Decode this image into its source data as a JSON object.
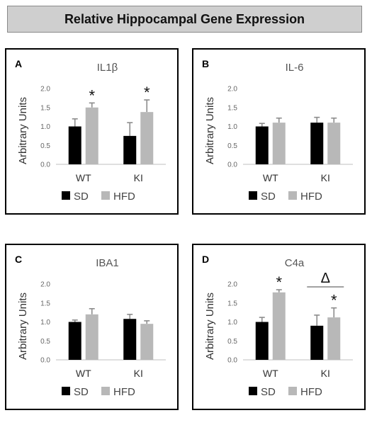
{
  "title": "Relative Hippocampal Gene Expression",
  "colors": {
    "SD": "#000000",
    "HFD": "#b8b8b8",
    "error": "#8c8c8c",
    "axis": "#bfbfbf"
  },
  "chart_data": [
    {
      "type": "bar",
      "panel": "A",
      "title": "IL1β",
      "ylabel": "Arbitrary Units",
      "ylim": [
        0,
        2.0
      ],
      "yticks": [
        "0.0",
        "0.5",
        "1.0",
        "1.5",
        "2.0"
      ],
      "categories": [
        "WT",
        "KI"
      ],
      "series": [
        {
          "name": "SD",
          "values": [
            1.0,
            0.75
          ],
          "errors": [
            0.2,
            0.35
          ]
        },
        {
          "name": "HFD",
          "values": [
            1.5,
            1.38
          ],
          "errors": [
            0.12,
            0.32
          ]
        }
      ],
      "annotations": [
        {
          "text": "*",
          "category": "WT",
          "series": "HFD"
        },
        {
          "text": "*",
          "category": "KI",
          "series": "HFD"
        }
      ],
      "legend": [
        "SD",
        "HFD"
      ]
    },
    {
      "type": "bar",
      "panel": "B",
      "title": "IL-6",
      "ylabel": "Arbitrary Units",
      "ylim": [
        0,
        2.0
      ],
      "yticks": [
        "0.0",
        "0.5",
        "1.0",
        "1.5",
        "2.0"
      ],
      "categories": [
        "WT",
        "KI"
      ],
      "series": [
        {
          "name": "SD",
          "values": [
            1.0,
            1.1
          ],
          "errors": [
            0.08,
            0.14
          ]
        },
        {
          "name": "HFD",
          "values": [
            1.1,
            1.1
          ],
          "errors": [
            0.12,
            0.12
          ]
        }
      ],
      "annotations": [],
      "legend": [
        "SD",
        "HFD"
      ]
    },
    {
      "type": "bar",
      "panel": "C",
      "title": "IBA1",
      "ylabel": "Arbitrary Units",
      "ylim": [
        0,
        2.0
      ],
      "yticks": [
        "0.0",
        "0.5",
        "1.0",
        "1.5",
        "2.0"
      ],
      "categories": [
        "WT",
        "KI"
      ],
      "series": [
        {
          "name": "SD",
          "values": [
            1.0,
            1.08
          ],
          "errors": [
            0.05,
            0.12
          ]
        },
        {
          "name": "HFD",
          "values": [
            1.2,
            0.95
          ],
          "errors": [
            0.15,
            0.08
          ]
        }
      ],
      "annotations": [],
      "legend": [
        "SD",
        "HFD"
      ]
    },
    {
      "type": "bar",
      "panel": "D",
      "title": "C4a",
      "ylabel": "Arbitrary Units",
      "ylim": [
        0,
        2.0
      ],
      "yticks": [
        "0.0",
        "0.5",
        "1.0",
        "1.5",
        "2.0"
      ],
      "categories": [
        "WT",
        "KI"
      ],
      "series": [
        {
          "name": "SD",
          "values": [
            1.0,
            0.9
          ],
          "errors": [
            0.12,
            0.28
          ]
        },
        {
          "name": "HFD",
          "values": [
            1.78,
            1.12
          ],
          "errors": [
            0.07,
            0.25
          ]
        }
      ],
      "annotations": [
        {
          "text": "*",
          "category": "WT",
          "series": "HFD"
        },
        {
          "text": "*",
          "category": "KI",
          "series": "HFD"
        },
        {
          "text": "Δ",
          "category": "KI",
          "series": "bracket"
        }
      ],
      "legend": [
        "SD",
        "HFD"
      ]
    }
  ]
}
